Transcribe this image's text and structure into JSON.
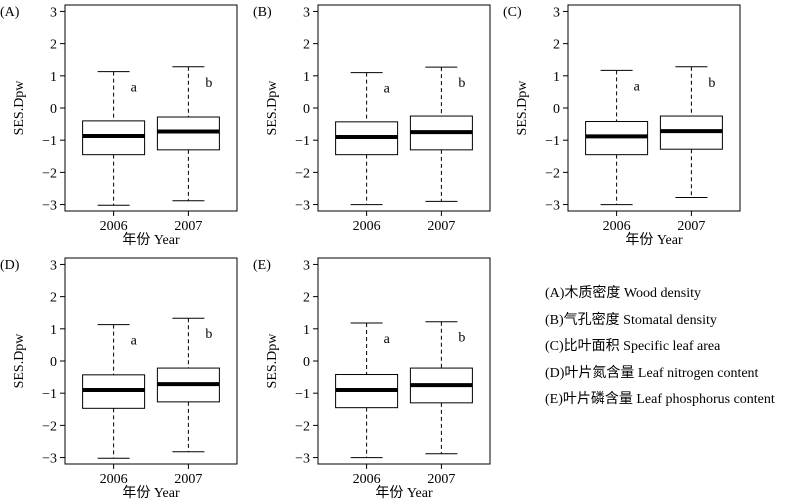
{
  "chart_data": [
    {
      "type": "boxplot",
      "panel_label": "(A)",
      "ylabel": "SES.Dpw",
      "xlabel": "年份 Year",
      "ylim": [
        -3.2,
        3.2
      ],
      "yticks": [
        -3,
        -2,
        -1,
        0,
        1,
        2,
        3
      ],
      "grid": false,
      "categories": [
        "2006",
        "2007"
      ],
      "boxes": [
        {
          "category": "2006",
          "whisker_low": -3.02,
          "q1": -1.45,
          "median": -0.87,
          "q3": -0.4,
          "whisker_high": 1.13,
          "letter": "a"
        },
        {
          "category": "2007",
          "whisker_low": -2.88,
          "q1": -1.3,
          "median": -0.73,
          "q3": -0.28,
          "whisker_high": 1.28,
          "letter": "b"
        }
      ]
    },
    {
      "type": "boxplot",
      "panel_label": "(B)",
      "ylabel": "SES.Dpw",
      "xlabel": "",
      "ylim": [
        -3.2,
        3.2
      ],
      "yticks": [
        -3,
        -2,
        -1,
        0,
        1,
        2,
        3
      ],
      "grid": false,
      "categories": [
        "2006",
        "2007"
      ],
      "boxes": [
        {
          "category": "2006",
          "whisker_low": -3.0,
          "q1": -1.45,
          "median": -0.9,
          "q3": -0.43,
          "whisker_high": 1.1,
          "letter": "a"
        },
        {
          "category": "2007",
          "whisker_low": -2.9,
          "q1": -1.3,
          "median": -0.75,
          "q3": -0.25,
          "whisker_high": 1.27,
          "letter": "b"
        }
      ]
    },
    {
      "type": "boxplot",
      "panel_label": "(C)",
      "ylabel": "SES.Dpw",
      "xlabel": "年份 Year",
      "ylim": [
        -3.2,
        3.2
      ],
      "yticks": [
        -3,
        -2,
        -1,
        0,
        1,
        2,
        3
      ],
      "grid": false,
      "categories": [
        "2006",
        "2007"
      ],
      "boxes": [
        {
          "category": "2006",
          "whisker_low": -3.0,
          "q1": -1.45,
          "median": -0.88,
          "q3": -0.42,
          "whisker_high": 1.17,
          "letter": "a"
        },
        {
          "category": "2007",
          "whisker_low": -2.78,
          "q1": -1.28,
          "median": -0.72,
          "q3": -0.25,
          "whisker_high": 1.28,
          "letter": "b"
        }
      ]
    },
    {
      "type": "boxplot",
      "panel_label": "(D)",
      "ylabel": "SES.Dpw",
      "xlabel": "年份 Year",
      "ylim": [
        -3.2,
        3.2
      ],
      "yticks": [
        -3,
        -2,
        -1,
        0,
        1,
        2,
        3
      ],
      "grid": false,
      "categories": [
        "2006",
        "2007"
      ],
      "boxes": [
        {
          "category": "2006",
          "whisker_low": -3.02,
          "q1": -1.47,
          "median": -0.9,
          "q3": -0.43,
          "whisker_high": 1.13,
          "letter": "a"
        },
        {
          "category": "2007",
          "whisker_low": -2.82,
          "q1": -1.27,
          "median": -0.72,
          "q3": -0.22,
          "whisker_high": 1.33,
          "letter": "b"
        }
      ]
    },
    {
      "type": "boxplot",
      "panel_label": "(E)",
      "ylabel": "SES.Dpw",
      "xlabel": "年份 Year",
      "ylim": [
        -3.2,
        3.2
      ],
      "yticks": [
        -3,
        -2,
        -1,
        0,
        1,
        2,
        3
      ],
      "grid": false,
      "categories": [
        "2006",
        "2007"
      ],
      "boxes": [
        {
          "category": "2006",
          "whisker_low": -3.0,
          "q1": -1.45,
          "median": -0.9,
          "q3": -0.42,
          "whisker_high": 1.18,
          "letter": "a"
        },
        {
          "category": "2007",
          "whisker_low": -2.88,
          "q1": -1.3,
          "median": -0.75,
          "q3": -0.22,
          "whisker_high": 1.22,
          "letter": "b"
        }
      ]
    }
  ],
  "legend": {
    "items": [
      "(A)木质密度 Wood density",
      "(B)气孔密度 Stomatal density",
      "(C)比叶面积  Specific leaf area",
      "(D)叶片氮含量 Leaf nitrogen content",
      "(E)叶片磷含量 Leaf phosphorus content"
    ]
  }
}
